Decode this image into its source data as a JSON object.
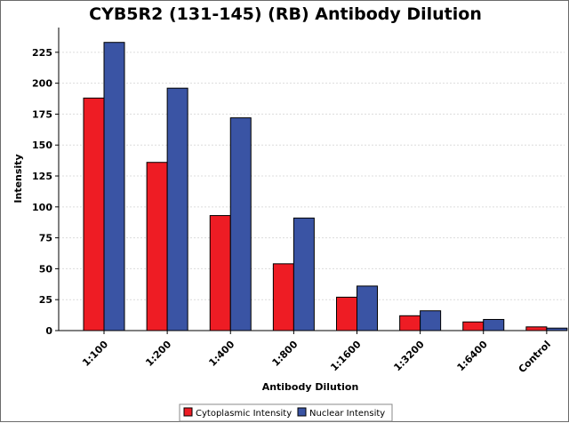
{
  "chart_data": {
    "type": "bar",
    "title": "CYB5R2 (131-145) (RB) Antibody Dilution",
    "xlabel": "Antibody Dilution",
    "ylabel": "Intensity",
    "categories": [
      "1:100",
      "1:200",
      "1:400",
      "1:800",
      "1:1600",
      "1:3200",
      "1:6400",
      "Control"
    ],
    "series": [
      {
        "name": "Cytoplasmic Intensity",
        "color": "#ee1c24",
        "values": [
          188,
          136,
          93,
          54,
          27,
          12,
          7,
          3
        ]
      },
      {
        "name": "Nuclear Intensity",
        "color": "#3a54a4",
        "values": [
          233,
          196,
          172,
          91,
          36,
          16,
          9,
          2
        ]
      }
    ],
    "ylim": [
      0,
      245
    ],
    "yticks": [
      0,
      25,
      50,
      75,
      100,
      125,
      150,
      175,
      200,
      225
    ],
    "grid": true,
    "legend_position": "bottom-center"
  }
}
